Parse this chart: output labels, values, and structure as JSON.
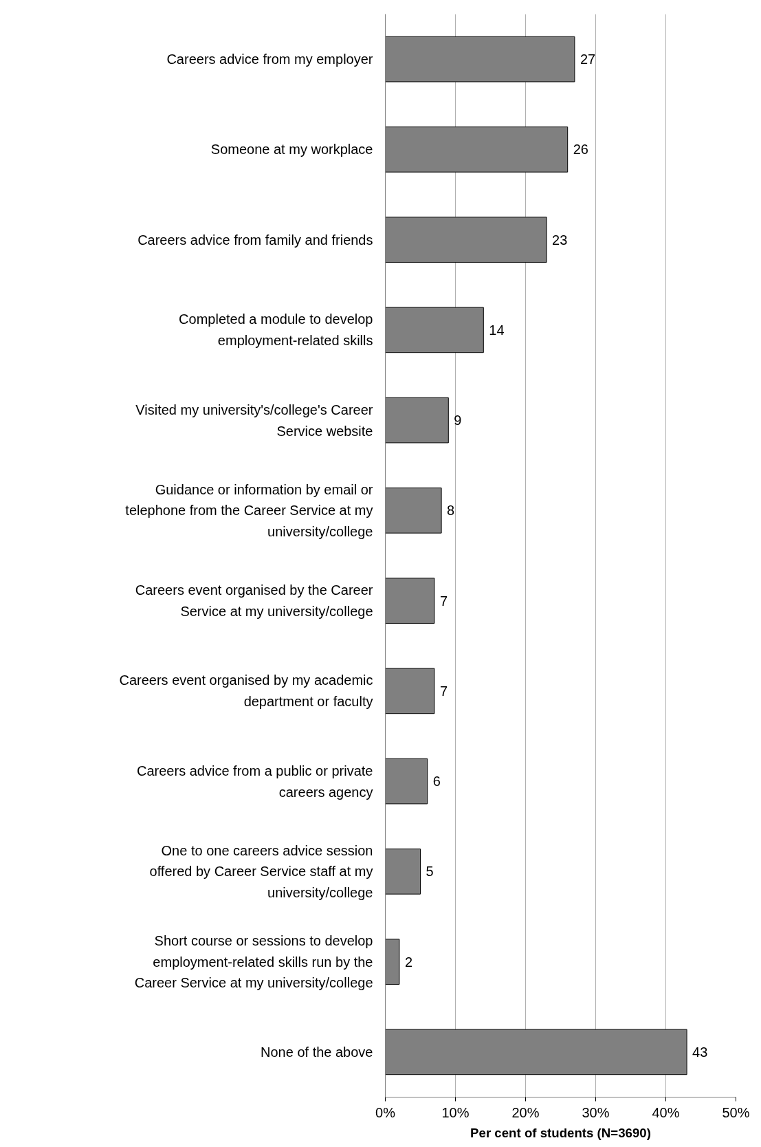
{
  "chart_data": {
    "type": "bar",
    "orientation": "horizontal",
    "xlabel": "Per cent of students (N=3690)",
    "categories": [
      "Careers advice from my employer",
      "Someone at my workplace",
      "Careers advice from family and friends",
      "Completed a module to develop employment-related skills",
      "Visited my university's/college's Career Service website",
      "Guidance or information by email or telephone from the Career Service at my university/college",
      "Careers event organised by the Career Service at my university/college",
      "Careers event organised by my academic department or faculty",
      "Careers advice from a public or private careers agency",
      "One to one careers advice session offered by Career Service staff at my university/college",
      "Short course or sessions to develop employment-related skills run by the Career Service at my university/college",
      "None of the above"
    ],
    "values": [
      27,
      26,
      23,
      14,
      9,
      8,
      7,
      7,
      6,
      5,
      2,
      43
    ],
    "color": "#808080",
    "data_labels": true,
    "grid": "x",
    "xlim": [
      0,
      50
    ],
    "xticks": [
      {
        "value": 0,
        "label": "0%"
      },
      {
        "value": 10,
        "label": "10%"
      },
      {
        "value": 20,
        "label": "20%"
      },
      {
        "value": 30,
        "label": "30%"
      },
      {
        "value": 40,
        "label": "40%"
      },
      {
        "value": 50,
        "label": "50%"
      }
    ]
  }
}
